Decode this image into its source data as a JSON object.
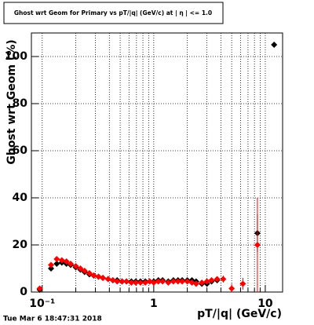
{
  "chart_data": {
    "type": "scatter",
    "title": "Ghost wrt Geom for Primary vs pT/|q| (GeV/c) at | η | <= 1.0",
    "x_label": "pT/|q| (GeV/c)",
    "y_label": "Ghost wrt Geom (%)",
    "footer": "Tue Mar  6 18:47:31 2018",
    "log_x": true,
    "grid": true,
    "xlim": [
      0.08,
      14.3
    ],
    "ylim": [
      0,
      110
    ],
    "xticks": [
      {
        "value": 0.1,
        "label": "10⁻¹"
      },
      1,
      10
    ],
    "xminor_ticks": [
      0.2,
      0.3,
      0.4,
      0.5,
      0.6,
      0.7,
      0.8,
      0.9,
      2,
      3,
      4,
      5,
      6,
      7,
      8,
      9
    ],
    "yticks": [
      0,
      20,
      40,
      60,
      80,
      100
    ],
    "x": [
      0.095,
      0.12,
      0.135,
      0.15,
      0.165,
      0.18,
      0.2,
      0.22,
      0.24,
      0.265,
      0.29,
      0.32,
      0.35,
      0.39,
      0.43,
      0.47,
      0.52,
      0.57,
      0.63,
      0.69,
      0.76,
      0.84,
      0.92,
      1.0,
      1.1,
      1.2,
      1.35,
      1.5,
      1.65,
      1.8,
      2.0,
      2.2,
      2.4,
      2.7,
      3.0,
      3.3,
      3.7,
      4.2,
      5.0,
      6.3,
      8.5,
      12.0
    ],
    "series": [
      {
        "name": "black",
        "color": "#000000",
        "values": [
          1,
          10,
          12,
          12.5,
          12,
          11.5,
          10.5,
          9.5,
          8.5,
          7.5,
          7,
          6.5,
          6,
          5.5,
          5,
          5,
          4.5,
          4.5,
          4.5,
          4.5,
          4.5,
          4.5,
          4.5,
          4.5,
          5,
          5,
          4.5,
          5,
          5,
          5,
          5,
          5,
          4.5,
          3.5,
          3.5,
          4.5,
          5,
          null,
          null,
          null,
          25,
          105
        ],
        "errors": [
          null,
          null,
          null,
          null,
          null,
          null,
          null,
          null,
          null,
          null,
          null,
          null,
          null,
          null,
          null,
          null,
          null,
          null,
          null,
          null,
          null,
          null,
          null,
          null,
          null,
          null,
          null,
          null,
          null,
          null,
          null,
          null,
          null,
          null,
          null,
          null,
          null,
          null,
          null,
          null,
          8,
          null
        ]
      },
      {
        "name": "red",
        "color": "#ff0000",
        "values": [
          1.5,
          11.5,
          14,
          13.5,
          13,
          12,
          11,
          10,
          9,
          8,
          7,
          6.5,
          6,
          5.5,
          5,
          4.5,
          4.5,
          4.5,
          4,
          4,
          4,
          4,
          4.5,
          4,
          4.5,
          4.5,
          4,
          4.5,
          4.5,
          4.5,
          4.5,
          4,
          3.5,
          4,
          4.5,
          5,
          5.5,
          5.5,
          1.5,
          3.5,
          20,
          null
        ],
        "errors": [
          null,
          null,
          null,
          null,
          null,
          null,
          null,
          null,
          null,
          null,
          null,
          null,
          null,
          null,
          null,
          null,
          null,
          null,
          null,
          null,
          null,
          null,
          null,
          null,
          null,
          null,
          null,
          null,
          null,
          null,
          null,
          null,
          null,
          null,
          null,
          null,
          null,
          1.5,
          2,
          2.5,
          20,
          null
        ]
      }
    ]
  }
}
